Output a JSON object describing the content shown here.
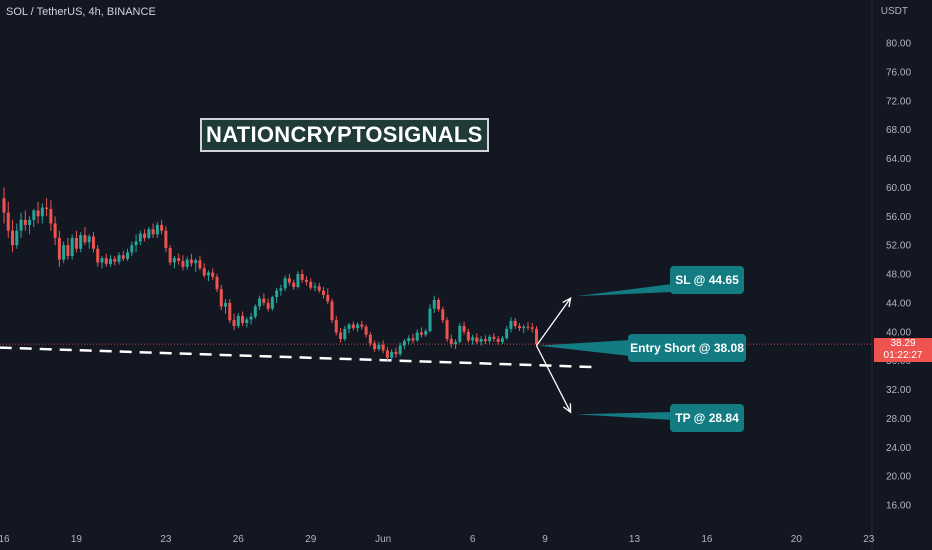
{
  "header": {
    "symbol": "SOL / TetherUS, 4h, BINANCE"
  },
  "brand": {
    "text": "NATIONCRYPTOSIGNALS"
  },
  "colors": {
    "background": "#131722",
    "up": "#26a69a",
    "down": "#ef5350",
    "callout": "#137c83",
    "price_tag": "#ef5350"
  },
  "annotations": {
    "sl_label": "SL @ 44.65",
    "entry_label": "Entry Short @ 38.08",
    "tp_label": "TP @ 28.84"
  },
  "price_tag": {
    "price": "38.29",
    "countdown": "01:22:27"
  },
  "chart_data": {
    "type": "candlestick",
    "y_unit": "USDT",
    "ylim": [
      12,
      86
    ],
    "y_ticks": [
      16,
      20,
      24,
      28,
      32,
      36,
      40,
      44,
      48,
      52,
      56,
      60,
      64,
      68,
      72,
      76,
      80
    ],
    "y_tick_labels": [
      "16.00",
      "20.00",
      "24.00",
      "28.00",
      "32.00",
      "36.00",
      "40.00",
      "44.00",
      "48.00",
      "52.00",
      "56.00",
      "60.00",
      "64.00",
      "68.00",
      "72.00",
      "76.00",
      "80.00"
    ],
    "x_ticks": [
      "16",
      "19",
      "23",
      "26",
      "29",
      "Jun",
      "6",
      "9",
      "13",
      "16",
      "20",
      "23"
    ],
    "x_tick_index": [
      0,
      17,
      38,
      55,
      72,
      89,
      110,
      127,
      148,
      165,
      186,
      203
    ],
    "candles": [
      [
        58.5,
        60,
        55,
        56.5
      ],
      [
        56.5,
        58,
        53,
        54
      ],
      [
        54,
        55.5,
        51,
        52
      ],
      [
        52,
        55,
        51.5,
        54
      ],
      [
        54,
        56.5,
        53,
        55.5
      ],
      [
        55.5,
        56.8,
        54,
        54.8
      ],
      [
        54.8,
        56,
        53.5,
        55.5
      ],
      [
        55.5,
        57,
        54.5,
        56.8
      ],
      [
        56.8,
        58,
        55,
        56
      ],
      [
        56,
        57.8,
        55,
        57.2
      ],
      [
        57.2,
        58.5,
        56,
        57
      ],
      [
        57,
        58.2,
        54,
        55
      ],
      [
        55,
        56,
        52,
        53
      ],
      [
        53,
        54,
        49,
        50
      ],
      [
        50,
        52.5,
        49.5,
        52
      ],
      [
        52,
        53,
        50,
        50.5
      ],
      [
        50.5,
        53.5,
        50,
        53
      ],
      [
        53,
        54,
        51,
        51.5
      ],
      [
        51.5,
        53.8,
        51,
        53.4
      ],
      [
        53.4,
        54.5,
        52,
        52.4
      ],
      [
        52.4,
        53.5,
        51.5,
        53.2
      ],
      [
        53.2,
        53.8,
        51,
        51.5
      ],
      [
        51.5,
        52,
        49,
        49.6
      ],
      [
        49.6,
        50.5,
        48.8,
        50.2
      ],
      [
        50.2,
        50.8,
        49,
        49.4
      ],
      [
        49.4,
        50.6,
        49,
        50.1
      ],
      [
        50.1,
        50.5,
        49.2,
        49.7
      ],
      [
        49.7,
        51,
        49.3,
        50.6
      ],
      [
        50.6,
        51.2,
        49.8,
        50.1
      ],
      [
        50.1,
        51.5,
        49.8,
        51
      ],
      [
        51,
        52.5,
        50.5,
        52
      ],
      [
        52,
        53.5,
        51,
        52.5
      ],
      [
        52.5,
        54,
        52,
        53.6
      ],
      [
        53.6,
        54.2,
        52.5,
        53
      ],
      [
        53,
        54.5,
        52.8,
        54.2
      ],
      [
        54.2,
        55,
        53,
        53.5
      ],
      [
        53.5,
        55.2,
        53,
        54.8
      ],
      [
        54.8,
        55.5,
        53.5,
        54
      ],
      [
        54,
        54.6,
        51,
        51.6
      ],
      [
        51.6,
        52,
        49.2,
        49.6
      ],
      [
        49.6,
        50.5,
        48.8,
        50.2
      ],
      [
        50.2,
        50.8,
        49.3,
        49.8
      ],
      [
        49.8,
        50.6,
        48.5,
        49
      ],
      [
        49,
        50.4,
        48.6,
        50
      ],
      [
        50,
        50.8,
        49,
        49.5
      ],
      [
        49.5,
        50.2,
        48.3,
        49.9
      ],
      [
        49.9,
        50.5,
        48.5,
        48.8
      ],
      [
        48.8,
        49.5,
        47.5,
        47.8
      ],
      [
        47.8,
        48.5,
        47,
        48.2
      ],
      [
        48.2,
        48.8,
        47.2,
        47.6
      ],
      [
        47.6,
        48,
        45.5,
        45.9
      ],
      [
        45.9,
        46.5,
        43,
        43.5
      ],
      [
        43.5,
        44.5,
        42.5,
        44
      ],
      [
        44,
        44.5,
        41.2,
        41.6
      ],
      [
        41.6,
        42.5,
        40.2,
        40.8
      ],
      [
        40.8,
        42.6,
        40.5,
        42.2
      ],
      [
        42.2,
        42.8,
        40.8,
        41.2
      ],
      [
        41.2,
        42,
        40.6,
        41.7
      ],
      [
        41.7,
        42.6,
        41,
        42.1
      ],
      [
        42.1,
        43.8,
        41.8,
        43.5
      ],
      [
        43.5,
        45,
        43,
        44.6
      ],
      [
        44.6,
        45.3,
        43.6,
        44
      ],
      [
        44,
        44.6,
        42.8,
        43.2
      ],
      [
        43.2,
        45,
        42.9,
        44.8
      ],
      [
        44.8,
        46.1,
        44,
        45.7
      ],
      [
        45.7,
        46.5,
        45,
        46
      ],
      [
        46,
        47.8,
        45.6,
        47.4
      ],
      [
        47.4,
        48,
        46.4,
        46.8
      ],
      [
        46.8,
        47.2,
        45.8,
        46.2
      ],
      [
        46.2,
        48.4,
        46,
        48
      ],
      [
        48,
        48.6,
        46.8,
        47.2
      ],
      [
        47.2,
        47.7,
        46.4,
        46.9
      ],
      [
        46.9,
        47.4,
        45.8,
        46.1
      ],
      [
        46.1,
        46.8,
        45.6,
        46.3
      ],
      [
        46.3,
        46.8,
        45.4,
        45.7
      ],
      [
        45.7,
        46.2,
        44.6,
        45.1
      ],
      [
        45.1,
        46,
        43.8,
        44.2
      ],
      [
        44.2,
        44.6,
        41.2,
        41.6
      ],
      [
        41.6,
        42.2,
        39.5,
        39.9
      ],
      [
        39.9,
        40.5,
        38.5,
        39
      ],
      [
        39,
        40.8,
        38.7,
        40.4
      ],
      [
        40.4,
        41.2,
        39.8,
        41
      ],
      [
        41,
        41.4,
        40.2,
        40.5
      ],
      [
        40.5,
        41.3,
        40,
        41
      ],
      [
        41,
        41.5,
        40.3,
        40.7
      ],
      [
        40.7,
        41,
        39.2,
        39.6
      ],
      [
        39.6,
        40,
        38,
        38.4
      ],
      [
        38.4,
        38.8,
        37.2,
        37.6
      ],
      [
        37.6,
        38.6,
        37.3,
        38.2
      ],
      [
        38.2,
        38.8,
        37,
        37.4
      ],
      [
        37.4,
        37.9,
        36,
        36.4
      ],
      [
        36.4,
        37.6,
        36.1,
        37.2
      ],
      [
        37.2,
        37.8,
        36.4,
        36.9
      ],
      [
        36.9,
        38.5,
        36.6,
        38.1
      ],
      [
        38.1,
        39,
        37.6,
        38.7
      ],
      [
        38.7,
        39.5,
        38.2,
        39.1
      ],
      [
        39.1,
        39.7,
        38.4,
        38.8
      ],
      [
        38.8,
        40.3,
        38.6,
        39.9
      ],
      [
        39.9,
        40.6,
        39.2,
        39.6
      ],
      [
        39.6,
        40.4,
        39.3,
        40.1
      ],
      [
        40.1,
        43.8,
        39.9,
        43.2
      ],
      [
        43.2,
        45,
        42.6,
        44.4
      ],
      [
        44.4,
        44.7,
        42.8,
        43.1
      ],
      [
        43.1,
        43.5,
        41.2,
        41.6
      ],
      [
        41.6,
        42,
        38.6,
        39
      ],
      [
        39,
        39.6,
        37.8,
        38.3
      ],
      [
        38.3,
        39,
        37.6,
        38.6
      ],
      [
        38.6,
        41.2,
        38.4,
        40.8
      ],
      [
        40.8,
        41.4,
        39.6,
        40
      ],
      [
        40,
        40.4,
        38.5,
        38.8
      ],
      [
        38.8,
        39.6,
        38.2,
        39.2
      ],
      [
        39.2,
        39.8,
        38.3,
        38.6
      ],
      [
        38.6,
        39.4,
        38.1,
        39
      ],
      [
        39,
        39.5,
        38.3,
        38.7
      ],
      [
        38.7,
        39.6,
        38.4,
        39.3
      ],
      [
        39.3,
        39.8,
        38.6,
        39
      ],
      [
        39,
        39.4,
        38.2,
        38.6
      ],
      [
        38.6,
        39.4,
        38.3,
        39.1
      ],
      [
        39.1,
        40.8,
        38.9,
        40.4
      ],
      [
        40.4,
        42,
        39.9,
        41.5
      ],
      [
        41.5,
        41.9,
        40.4,
        40.8
      ],
      [
        40.8,
        41.2,
        40.1,
        40.5
      ],
      [
        40.5,
        41,
        39.8,
        40.7
      ],
      [
        40.7,
        41.3,
        40.2,
        40.6
      ],
      [
        40.6,
        41.2,
        39.9,
        40.4
      ],
      [
        40.4,
        40.8,
        38,
        38.29
      ]
    ],
    "trend_line": {
      "from": {
        "index": -1,
        "price": 37.8
      },
      "to": {
        "index": 139,
        "price": 35.1
      },
      "style": "dashed"
    },
    "current_price_line": 38.29,
    "arrows": [
      {
        "from_index": 125,
        "from_price": 38.08,
        "to_index": 133,
        "to_price": 44.65
      },
      {
        "from_index": 125,
        "from_price": 38.08,
        "to_index": 133,
        "to_price": 28.84
      }
    ]
  }
}
